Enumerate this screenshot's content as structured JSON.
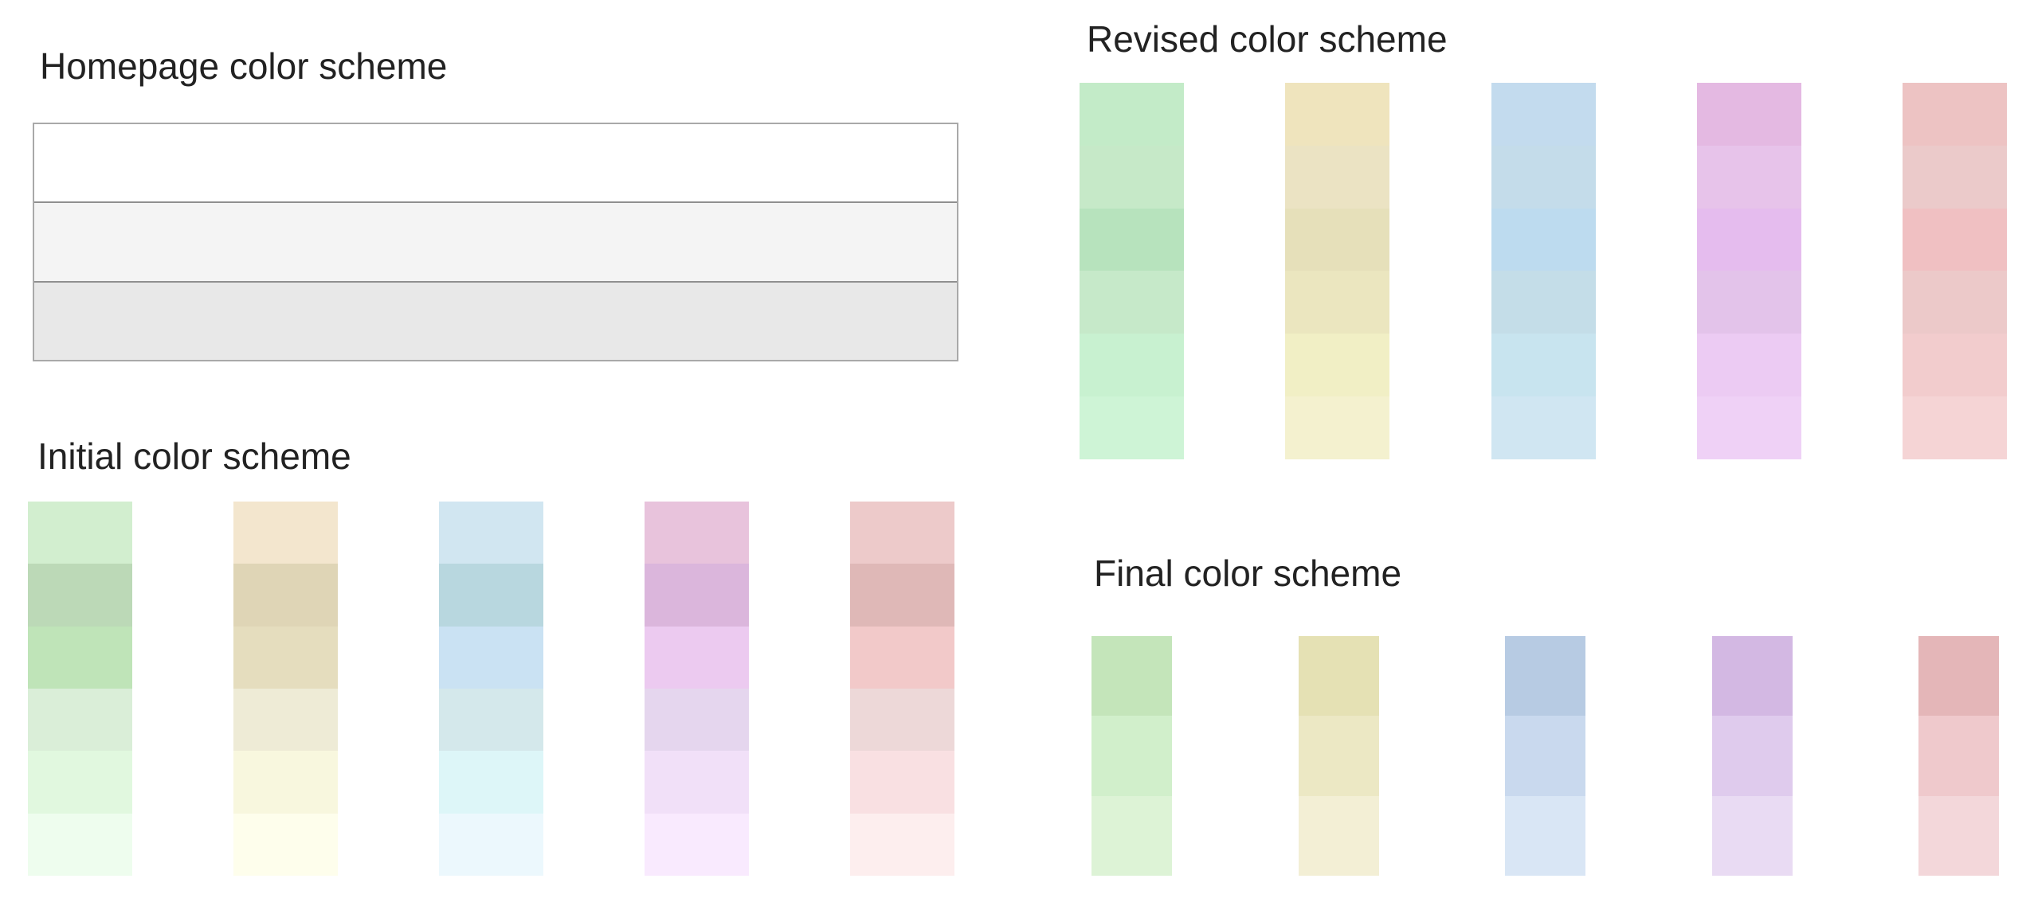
{
  "homepage": {
    "title": "Homepage color scheme",
    "rows": [
      "#ffffff",
      "#f4f4f4",
      "#e8e8e8"
    ]
  },
  "initial": {
    "title": "Initial color scheme",
    "columns": [
      {
        "name": "green",
        "swatches": [
          "#d2eecf",
          "#bcd9b7",
          "#bfe4b8",
          "#daeed8",
          "#e1f8df",
          "#eefdee"
        ]
      },
      {
        "name": "yellow",
        "swatches": [
          "#f3e6ce",
          "#dfd5b6",
          "#e5ddbe",
          "#eeebd6",
          "#f8f7de",
          "#fefeec"
        ]
      },
      {
        "name": "blue",
        "swatches": [
          "#d1e6f1",
          "#b8d7df",
          "#cae2f3",
          "#d4e8eb",
          "#ddf6f8",
          "#ecf8fd"
        ]
      },
      {
        "name": "purple",
        "swatches": [
          "#e8c3dc",
          "#dbb6dc",
          "#eccaf0",
          "#e5d6ee",
          "#f1e0f8",
          "#f9eafe"
        ]
      },
      {
        "name": "red",
        "swatches": [
          "#edcaca",
          "#dfb8b7",
          "#f2c9c9",
          "#edd8d8",
          "#f9e0e2",
          "#fdeeee"
        ]
      }
    ]
  },
  "revised": {
    "title": "Revised color scheme",
    "columns": [
      {
        "name": "green",
        "swatches": [
          "#c3ebc8",
          "#c6e9c8",
          "#b7e3bd",
          "#c6e9c9",
          "#c8f1d0",
          "#cef4d6"
        ]
      },
      {
        "name": "yellow",
        "swatches": [
          "#efe4bd",
          "#ebe3c3",
          "#e6e0ba",
          "#ebe6bf",
          "#f1efc5",
          "#f4f1cf"
        ]
      },
      {
        "name": "blue",
        "swatches": [
          "#c3dbee",
          "#c4dcea",
          "#bddbef",
          "#c4dde8",
          "#c8e4ef",
          "#d0e6f2"
        ]
      },
      {
        "name": "purple",
        "swatches": [
          "#e4b9e2",
          "#e7c3ea",
          "#e5bcee",
          "#e3c3ea",
          "#eccbf3",
          "#efd1f6"
        ]
      },
      {
        "name": "red",
        "swatches": [
          "#edc3c3",
          "#ebcaca",
          "#f0c0c2",
          "#ecc9c9",
          "#f2cccd",
          "#f5d4d5"
        ]
      }
    ]
  },
  "final": {
    "title": "Final color scheme",
    "columns": [
      {
        "name": "green",
        "swatches": [
          "#c4e5ba",
          "#d1efcb",
          "#ddf3d6"
        ]
      },
      {
        "name": "yellow",
        "swatches": [
          "#e5e1b4",
          "#ece8c4",
          "#f3efd5"
        ]
      },
      {
        "name": "blue",
        "swatches": [
          "#b7cbe3",
          "#c9d9ee",
          "#d9e6f5"
        ]
      },
      {
        "name": "purple",
        "swatches": [
          "#d3b8e3",
          "#dfcbed",
          "#e9dbf3"
        ]
      },
      {
        "name": "red",
        "swatches": [
          "#e4b6b8",
          "#efc9cc",
          "#f3d7da"
        ]
      }
    ]
  }
}
